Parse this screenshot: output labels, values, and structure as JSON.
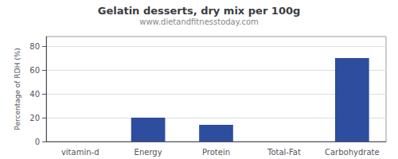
{
  "chart_data": {
    "type": "bar",
    "title": "Gelatin desserts, dry mix per 100g",
    "subtitle": "www.dietandfitnesstoday.com",
    "ylabel": "Percentage of RDH (%)",
    "categories": [
      "vitamin-d",
      "Energy",
      "Protein",
      "Total-Fat",
      "Carbohydrate"
    ],
    "values": [
      0,
      20,
      14,
      0,
      70
    ],
    "color": "#2e4d9e",
    "ylim": [
      0,
      88
    ],
    "yticks": [
      0,
      20,
      40,
      60,
      80
    ],
    "grid": true
  }
}
